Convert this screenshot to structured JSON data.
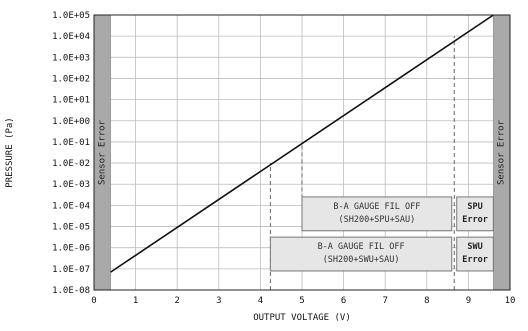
{
  "chart_data": {
    "type": "line",
    "title": "",
    "xlabel": "OUTPUT VOLTAGE (V)",
    "ylabel": "PRESSURE (Pa)",
    "xlim": [
      0,
      10
    ],
    "ylim_log10": [
      -8,
      5
    ],
    "log_y": true,
    "grid": true,
    "x_ticks": [
      "0",
      "1",
      "2",
      "3",
      "4",
      "5",
      "6",
      "7",
      "8",
      "9",
      "10"
    ],
    "y_ticks": [
      "1.0E-08",
      "1.0E-07",
      "1.0E-06",
      "1.0E-05",
      "1.0E-04",
      "1.0E-03",
      "1.0E-02",
      "1.0E-01",
      "1.0E+00",
      "1.0E+01",
      "1.0E+02",
      "1.0E+03",
      "1.0E+04",
      "1.0E+05"
    ],
    "series": [
      {
        "x": [
          0.4,
          9.6
        ],
        "y": [
          7e-08,
          100000.0
        ]
      }
    ],
    "error_band_left": {
      "x_range": [
        0,
        0.4
      ],
      "label": "Sensor Error"
    },
    "error_band_right": {
      "x_range": [
        9.6,
        10
      ],
      "label": "Sensor Error"
    },
    "threshold_lines": [
      {
        "x": 4.24,
        "y_from": 1e-08,
        "y_to": 0.01
      },
      {
        "x": 5.0,
        "y_from": 0.0001,
        "y_to": 0.1
      },
      {
        "x": 8.66,
        "y_from": 1e-08,
        "y_to": 10000.0
      }
    ],
    "annotation_boxes": [
      {
        "x_range": [
          5.0,
          8.6
        ],
        "y_range_log10": [
          -5.2,
          -3.6
        ],
        "lines": [
          "B-A GAUGE FIL OFF",
          "(SH200+SPU+SAU)"
        ]
      },
      {
        "x_range": [
          8.72,
          9.6
        ],
        "y_range_log10": [
          -5.2,
          -3.6
        ],
        "lines": [
          "SPU",
          "Error"
        ],
        "bold": true
      },
      {
        "x_range": [
          4.24,
          8.6
        ],
        "y_range_log10": [
          -7.1,
          -5.5
        ],
        "lines": [
          "B-A GAUGE FIL OFF",
          "(SH200+SWU+SAU)"
        ]
      },
      {
        "x_range": [
          8.72,
          9.6
        ],
        "y_range_log10": [
          -7.1,
          -5.5
        ],
        "lines": [
          "SWU",
          "Error"
        ],
        "bold": true
      }
    ]
  }
}
